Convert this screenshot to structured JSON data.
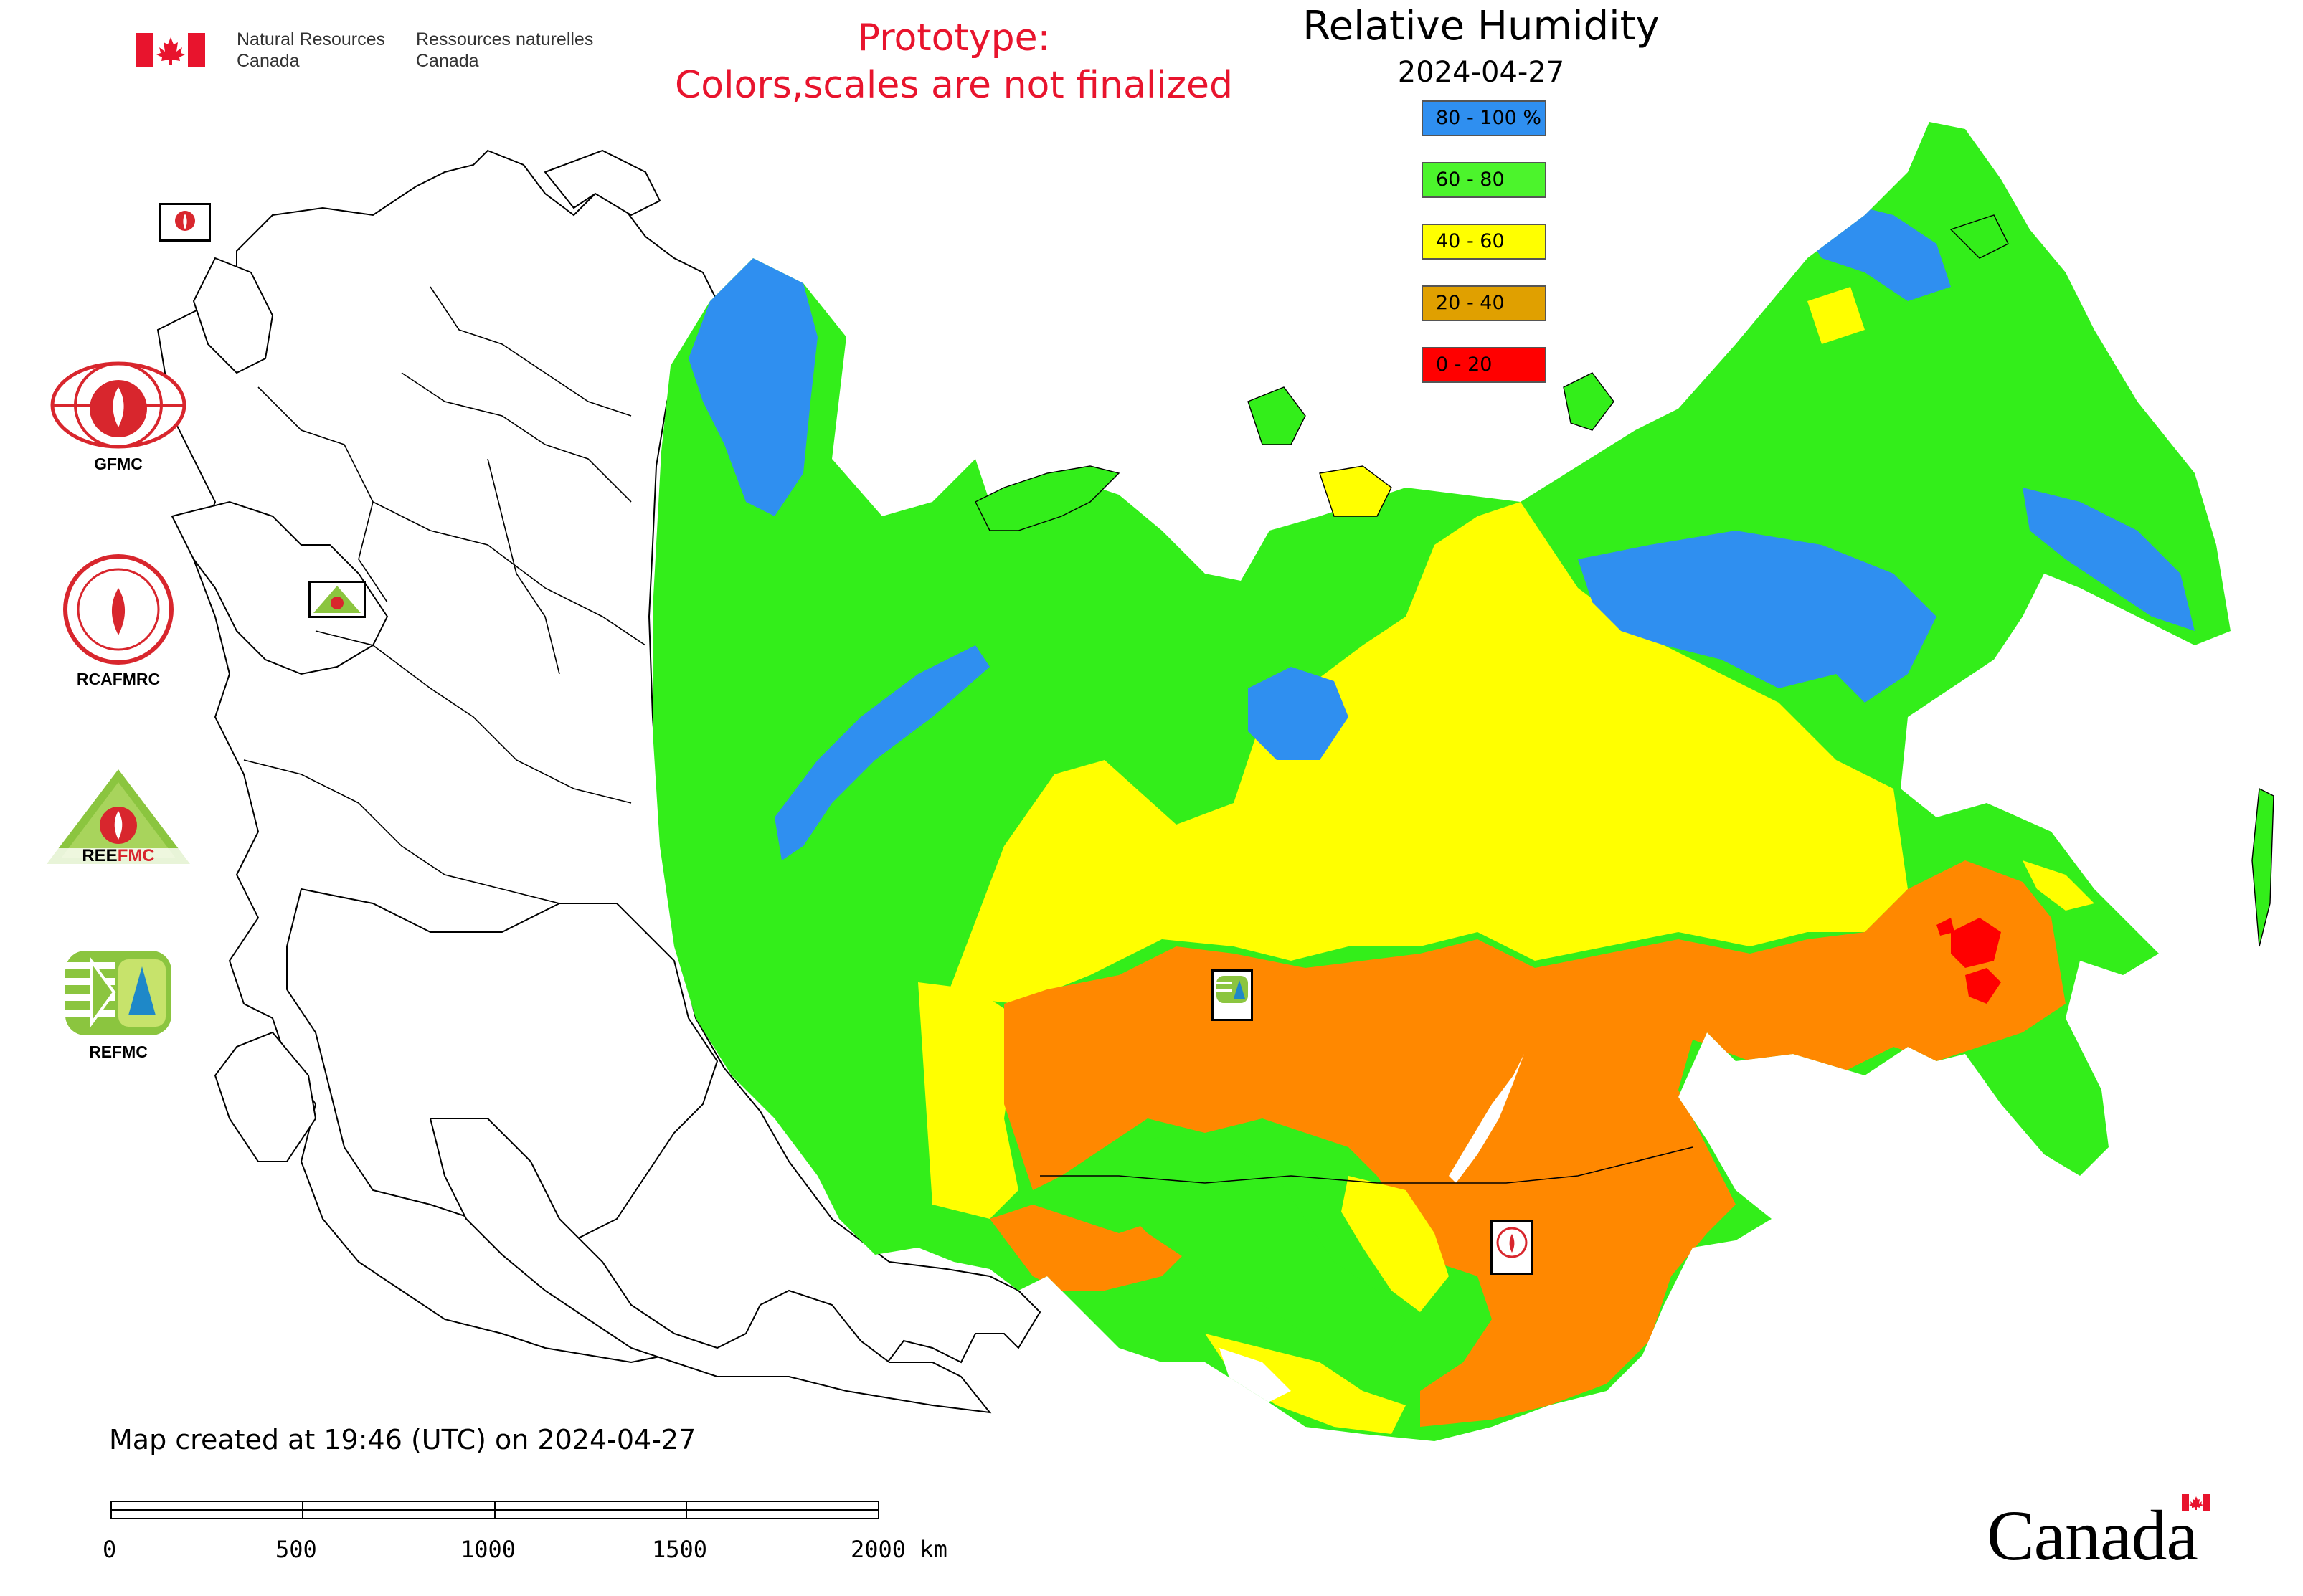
{
  "header": {
    "org_en_line1": "Natural Resources",
    "org_en_line2": "Canada",
    "org_fr_line1": "Ressources naturelles",
    "org_fr_line2": "Canada",
    "prototype_line1": "Prototype:",
    "prototype_line2": "Colors,scales are not finalized"
  },
  "legend": {
    "title": "Relative Humidity",
    "date": "2024-04-27",
    "items": [
      {
        "label": "80 - 100 %",
        "color": "#2f8ff0"
      },
      {
        "label": "60 - 80",
        "color": "#4cf42c"
      },
      {
        "label": "40 - 60",
        "color": "#ffff00"
      },
      {
        "label": "20 - 40",
        "color": "#e0a000"
      },
      {
        "label": "0 - 20",
        "color": "#ff0000"
      }
    ]
  },
  "map_palette": {
    "very_humid": "#2f8ff0",
    "humid": "#33ee1a",
    "moderate": "#ffff00",
    "dry": "#ff8800",
    "very_dry": "#ff0000"
  },
  "logos": [
    {
      "caption": "GFMC"
    },
    {
      "caption": "RCAFMRC"
    },
    {
      "caption": "REEFMC"
    },
    {
      "caption": "REFMC"
    }
  ],
  "footer": {
    "created_text": "Map created at 19:46 (UTC) on 2024-04-27",
    "scale_ticks": [
      "0",
      "500",
      "1000",
      "1500",
      "2000 km"
    ],
    "wordmark": "Canada"
  }
}
